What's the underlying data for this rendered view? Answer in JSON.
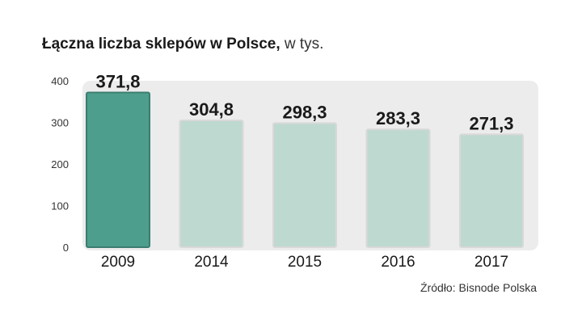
{
  "title": "Łączna liczba sklepów w Polsce,",
  "title_unit": " w tys.",
  "source": "Źródło: Bisnode Polska",
  "colors": {
    "highlight": "#4e9e8d",
    "highlight_border": "#3b7e70",
    "normal": "#bed9d0",
    "normal_border": "#d9d9d9",
    "panel": "#ececec",
    "tick_text": "#333333"
  },
  "chart_data": {
    "type": "bar",
    "categories": [
      "2009",
      "2014",
      "2015",
      "2016",
      "2017"
    ],
    "values": [
      371.8,
      304.8,
      298.3,
      283.3,
      271.3
    ],
    "value_labels": [
      "371,8",
      "304,8",
      "298,3",
      "283,3",
      "271,3"
    ],
    "highlight_index": 0,
    "ylim": [
      0,
      400
    ],
    "yticks": [
      "0",
      "100",
      "200",
      "300",
      "400"
    ],
    "grid": false,
    "xlabel": "",
    "ylabel": ""
  }
}
